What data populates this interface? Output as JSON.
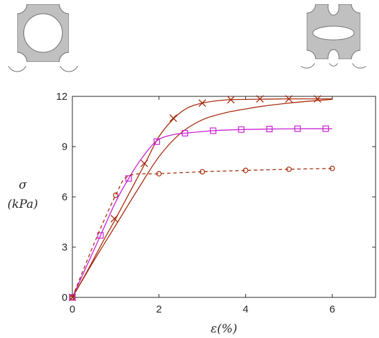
{
  "chart_data": {
    "type": "line",
    "xlabel": "ε(%)",
    "ylabel_line1": "σ",
    "ylabel_line2": "(kPa)",
    "xlim": [
      0,
      7
    ],
    "ylim": [
      0,
      12
    ],
    "x_ticks": [
      0,
      2,
      4,
      6
    ],
    "y_ticks": [
      0,
      3,
      6,
      9,
      12
    ],
    "grid": false,
    "legend": "none",
    "series": [
      {
        "color": "#a52a0a",
        "line": "solid",
        "marker": "cross",
        "points": [
          [
            0,
            0
          ],
          [
            0.35,
            1.6
          ],
          [
            0.7,
            3.3
          ],
          [
            1.0,
            4.7
          ],
          [
            1.35,
            6.4
          ],
          [
            1.7,
            8.1
          ],
          [
            2.0,
            9.6
          ],
          [
            2.35,
            10.7
          ],
          [
            2.65,
            11.3
          ],
          [
            3.0,
            11.6
          ],
          [
            3.5,
            11.78
          ],
          [
            4.0,
            11.82
          ],
          [
            5.0,
            11.85
          ],
          [
            6.0,
            11.85
          ]
        ],
        "marker_points": [
          [
            0,
            0
          ],
          [
            0.97,
            4.7
          ],
          [
            1.66,
            8.0
          ],
          [
            2.33,
            10.7
          ],
          [
            3.0,
            11.6
          ],
          [
            3.66,
            11.8
          ],
          [
            4.33,
            11.85
          ],
          [
            5.0,
            11.85
          ],
          [
            5.66,
            11.85
          ]
        ]
      },
      {
        "color": "#a52a0a",
        "line": "solid",
        "marker": "none",
        "points": [
          [
            0,
            0
          ],
          [
            0.5,
            2.2
          ],
          [
            1.0,
            4.3
          ],
          [
            1.5,
            6.4
          ],
          [
            2.0,
            8.4
          ],
          [
            2.5,
            9.8
          ],
          [
            3.0,
            10.6
          ],
          [
            3.5,
            11.0
          ],
          [
            4.0,
            11.25
          ],
          [
            4.5,
            11.45
          ],
          [
            5.0,
            11.6
          ],
          [
            5.5,
            11.72
          ],
          [
            6.0,
            11.82
          ]
        ],
        "marker_points": []
      },
      {
        "color": "#c81ed2",
        "line": "solid",
        "marker": "square",
        "points": [
          [
            0,
            0
          ],
          [
            0.3,
            1.7
          ],
          [
            0.65,
            3.7
          ],
          [
            1.0,
            5.7
          ],
          [
            1.3,
            7.1
          ],
          [
            1.6,
            8.3
          ],
          [
            1.95,
            9.35
          ],
          [
            2.3,
            9.7
          ],
          [
            2.6,
            9.8
          ],
          [
            3.25,
            9.95
          ],
          [
            3.9,
            10.02
          ],
          [
            4.55,
            10.05
          ],
          [
            5.2,
            10.07
          ],
          [
            6.0,
            10.07
          ]
        ],
        "marker_points": [
          [
            0,
            0
          ],
          [
            0.65,
            3.7
          ],
          [
            1.3,
            7.1
          ],
          [
            1.95,
            9.3
          ],
          [
            2.6,
            9.8
          ],
          [
            3.25,
            9.95
          ],
          [
            3.9,
            10.02
          ],
          [
            4.55,
            10.05
          ],
          [
            5.2,
            10.07
          ],
          [
            5.85,
            10.07
          ]
        ]
      },
      {
        "color": "#a52a0a",
        "line": "dashed",
        "marker": "circle",
        "points": [
          [
            0,
            0
          ],
          [
            0.5,
            3.2
          ],
          [
            1.0,
            6.1
          ],
          [
            1.3,
            7.25
          ],
          [
            2.0,
            7.38
          ],
          [
            3.0,
            7.5
          ],
          [
            4.0,
            7.58
          ],
          [
            5.0,
            7.65
          ],
          [
            6.0,
            7.7
          ]
        ],
        "marker_points": [
          [
            0,
            0
          ],
          [
            1.0,
            6.1
          ],
          [
            2.0,
            7.38
          ],
          [
            3.0,
            7.5
          ],
          [
            4.0,
            7.58
          ],
          [
            5.0,
            7.65
          ],
          [
            6.0,
            7.7
          ]
        ]
      }
    ]
  }
}
